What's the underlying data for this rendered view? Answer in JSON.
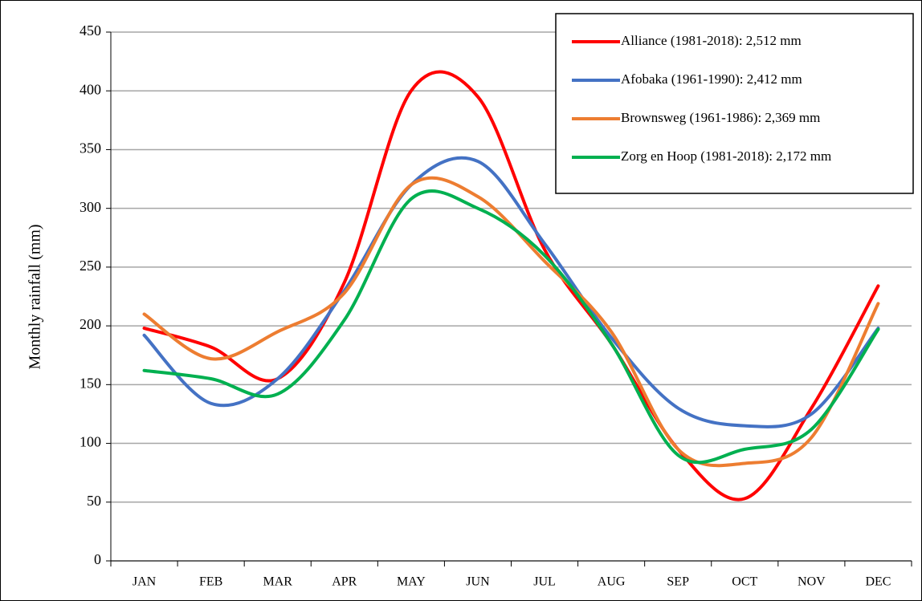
{
  "chart_data": {
    "type": "line",
    "y_label": "Monthly rainfall (mm)",
    "categories": [
      "JAN",
      "FEB",
      "MAR",
      "APR",
      "MAY",
      "JUN",
      "JUL",
      "AUG",
      "SEP",
      "OCT",
      "NOV",
      "DEC"
    ],
    "series": [
      {
        "name": "Alliance (1981-2018): 2,512 mm",
        "color": "#ff0000",
        "values": [
          198,
          182,
          155,
          237,
          400,
          395,
          265,
          185,
          95,
          53,
          130,
          234
        ]
      },
      {
        "name": "Afobaka (1961-1990): 2,412 mm",
        "color": "#4472c4",
        "values": [
          192,
          134,
          155,
          230,
          320,
          340,
          270,
          190,
          130,
          115,
          125,
          198
        ]
      },
      {
        "name": "Brownsweg (1961-1986): 2,369 mm",
        "color": "#ed7d31",
        "values": [
          210,
          172,
          195,
          228,
          320,
          310,
          255,
          195,
          95,
          83,
          105,
          219
        ]
      },
      {
        "name": "Zorg en Hoop (1981-2018): 2,172 mm",
        "color": "#00b050",
        "values": [
          162,
          155,
          142,
          205,
          308,
          300,
          260,
          185,
          90,
          95,
          112,
          197
        ]
      }
    ],
    "ylim": [
      0,
      450
    ],
    "yticks": [
      0,
      50,
      100,
      150,
      200,
      250,
      300,
      350,
      400,
      450
    ],
    "grid": true,
    "legend": "upper right",
    "smooth": true
  }
}
